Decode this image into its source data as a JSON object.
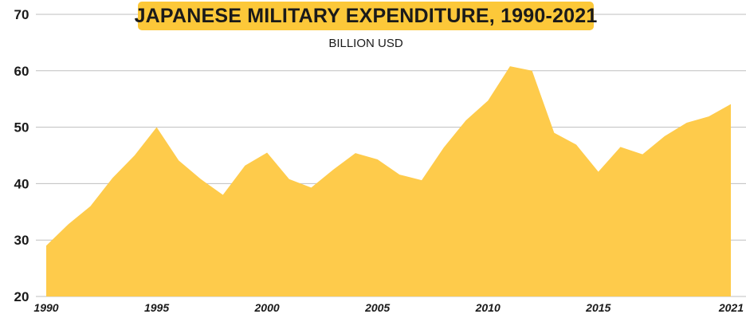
{
  "chart_data": {
    "type": "area",
    "title": "JAPANESE MILITARY EXPENDITURE, 1990-2021",
    "subtitle": "BILLION USD",
    "xlabel": "",
    "ylabel": "",
    "x": [
      1990,
      1991,
      1992,
      1993,
      1994,
      1995,
      1996,
      1997,
      1998,
      1999,
      2000,
      2001,
      2002,
      2003,
      2004,
      2005,
      2006,
      2007,
      2008,
      2009,
      2010,
      2011,
      2012,
      2013,
      2014,
      2015,
      2016,
      2017,
      2018,
      2019,
      2020,
      2021
    ],
    "x_tick_labels": [
      "1990",
      "1995",
      "2000",
      "2005",
      "2010",
      "2015",
      "2021"
    ],
    "x_tick_values": [
      1990,
      1995,
      2000,
      2005,
      2010,
      2015,
      2021
    ],
    "y_tick_labels": [
      "20",
      "30",
      "40",
      "50",
      "60",
      "70"
    ],
    "y_tick_values": [
      20,
      30,
      40,
      50,
      60,
      70
    ],
    "ylim": [
      20,
      70
    ],
    "grid": "horizontal",
    "series": [
      {
        "values": [
          29.0,
          32.8,
          36.0,
          41.0,
          45.0,
          50.0,
          44.1,
          40.8,
          38.0,
          43.2,
          45.5,
          40.8,
          39.3,
          42.5,
          45.4,
          44.3,
          41.6,
          40.6,
          46.4,
          51.2,
          54.7,
          60.8,
          60.0,
          49.0,
          46.9,
          42.1,
          46.5,
          45.2,
          48.4,
          50.8,
          51.9,
          54.1
        ],
        "color": "#fecb4b"
      }
    ],
    "colors": {
      "area": "#fecb4b",
      "title_bg": "#fcc839",
      "grid": "#bfbfbf",
      "text": "#1a1a1a"
    }
  }
}
